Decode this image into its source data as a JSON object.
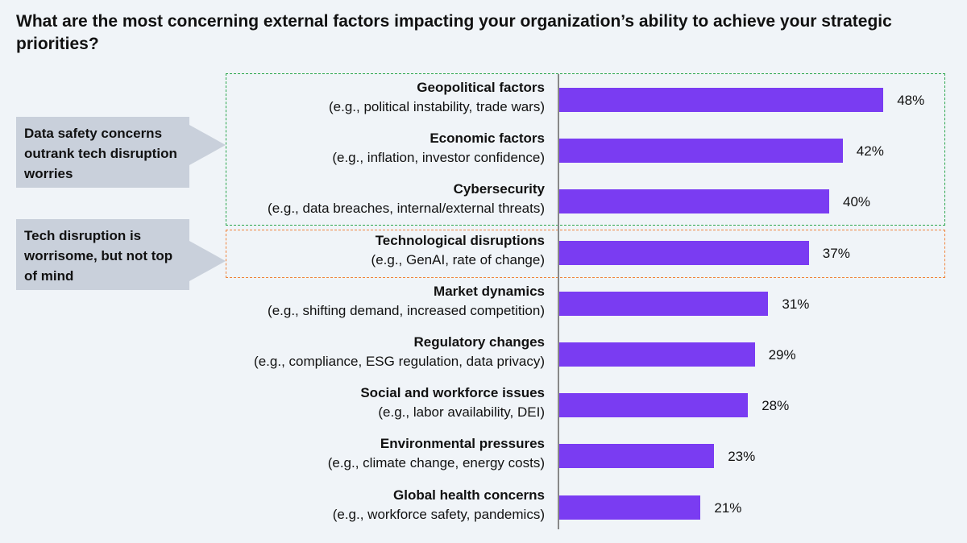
{
  "colors": {
    "bar": "#7a3cf2",
    "green_box": "#2aa64c",
    "orange_box": "#f0843c",
    "callout_bg": "#c9d0db"
  },
  "title": "What are the most concerning external factors impacting your organization’s ability to achieve your strategic priorities?",
  "callouts": [
    {
      "text": "Data safety concerns outrank tech disruption worries"
    },
    {
      "text": "Tech disruption is worrisome, but not top of mind"
    }
  ],
  "chart_data": {
    "type": "bar",
    "orientation": "horizontal",
    "title": "What are the most concerning external factors impacting your organization’s ability to achieve your strategic priorities?",
    "unit": "%",
    "xlim": [
      0,
      50
    ],
    "categories": [
      "Geopolitical factors",
      "Economic factors",
      "Cybersecurity",
      "Technological disruptions",
      "Market dynamics",
      "Regulatory changes",
      "Social and workforce issues",
      "Environmental pressures",
      "Global health concerns"
    ],
    "examples": [
      "(e.g., political instability, trade wars)",
      "(e.g., inflation, investor confidence)",
      "(e.g., data breaches, internal/external threats)",
      "(e.g., GenAI, rate of change)",
      "(e.g., shifting demand, increased competition)",
      "(e.g., compliance, ESG regulation, data privacy)",
      "(e.g., labor availability, DEI)",
      "(e.g., climate change, energy costs)",
      "(e.g., workforce safety, pandemics)"
    ],
    "values": [
      48,
      42,
      40,
      37,
      31,
      29,
      28,
      23,
      21
    ],
    "value_labels": [
      "48%",
      "42%",
      "40%",
      "37%",
      "31%",
      "29%",
      "28%",
      "23%",
      "21%"
    ],
    "highlight_groups": [
      {
        "categories": [
          "Geopolitical factors",
          "Economic factors",
          "Cybersecurity"
        ],
        "style": "dashed",
        "color": "green"
      },
      {
        "categories": [
          "Technological disruptions"
        ],
        "style": "dashed",
        "color": "orange"
      }
    ]
  }
}
